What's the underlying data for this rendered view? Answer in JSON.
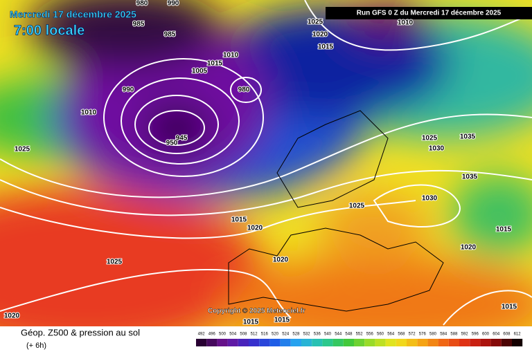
{
  "header": {
    "date": "Mercredi 17 décembre 2025",
    "local_time": "7:00 locale",
    "run": "Run GFS 0 Z du Mercredi 17 décembre 2025"
  },
  "copyright": "Copyright © 2025 Meteociel.fr",
  "footer": {
    "title": "Géop. Z500 & pression au sol",
    "lead": "(+ 6h)"
  },
  "isobar_labels": [
    "980",
    "990",
    "985",
    "985",
    "1025",
    "1020",
    "1015",
    "1010",
    "1010",
    "1015",
    "1005",
    "990",
    "980",
    "1010",
    "1025",
    "950",
    "945",
    "1025",
    "1030",
    "1035",
    "1035",
    "1030",
    "1025",
    "1015",
    "1020",
    "1015",
    "1020",
    "1020",
    "1025",
    "1015",
    "1020",
    "1015",
    "1015"
  ],
  "legend_ticks": [
    492,
    496,
    500,
    504,
    508,
    512,
    516,
    520,
    524,
    528,
    532,
    536,
    540,
    544,
    548,
    552,
    556,
    560,
    564,
    568,
    572,
    576,
    580,
    584,
    588,
    592,
    596,
    600,
    604,
    608,
    612
  ]
}
